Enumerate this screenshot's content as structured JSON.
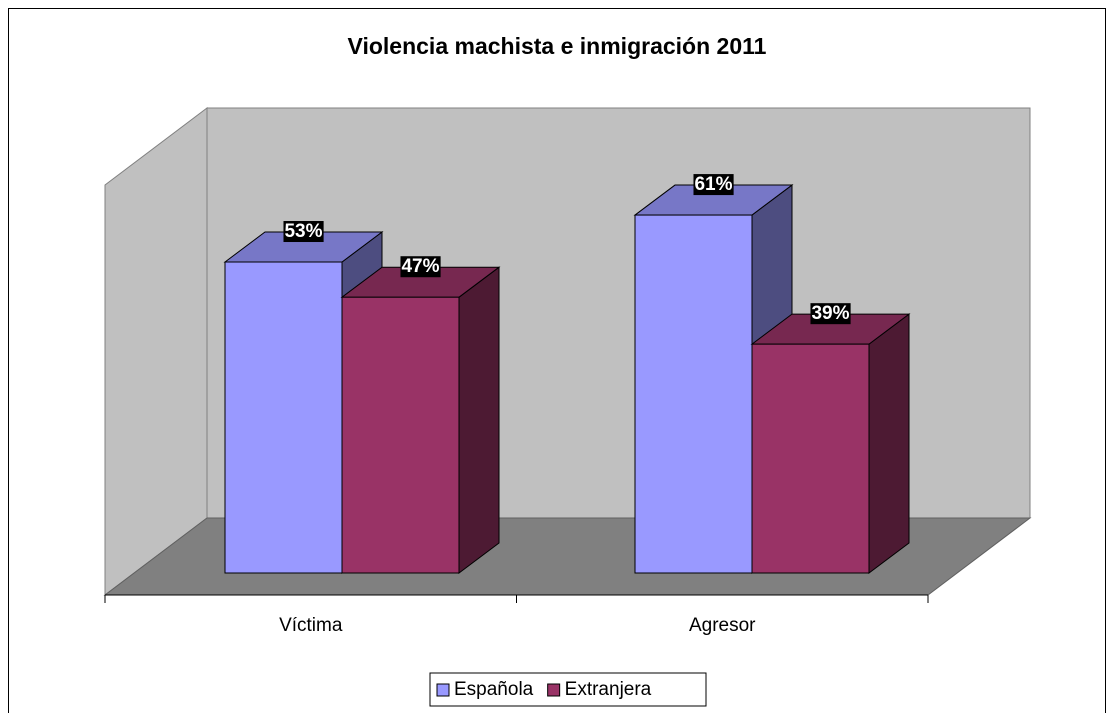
{
  "chart_data": {
    "type": "bar3d",
    "title": "Violencia machista e inmigración 2011",
    "categories": [
      "Víctima",
      "Agresor"
    ],
    "series": [
      {
        "name": "Española",
        "color": "#9999ff",
        "values": [
          53,
          61
        ],
        "value_labels": [
          "53%",
          "61%"
        ]
      },
      {
        "name": "Extranjera",
        "color": "#993366",
        "values": [
          47,
          39
        ],
        "value_labels": [
          "47%",
          "39%"
        ]
      }
    ],
    "ylim": [
      0,
      70
    ],
    "legend": "bottom"
  }
}
